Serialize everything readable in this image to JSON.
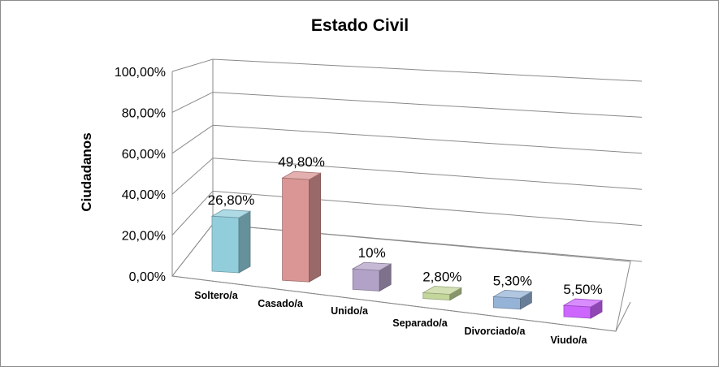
{
  "chart_data": {
    "type": "bar",
    "title": "Estado Civil",
    "ylabel": "Ciudadanos",
    "xlabel": "",
    "ylim": [
      0,
      100
    ],
    "yticks": [
      "0,00%",
      "20,00%",
      "40,00%",
      "60,00%",
      "80,00%",
      "100,00%"
    ],
    "categories": [
      "Soltero/a",
      "Casado/a",
      "Unido/a",
      "Separado/a",
      "Divorciado/a",
      "Viudo/a"
    ],
    "values": [
      26.8,
      49.8,
      10,
      2.8,
      5.3,
      5.5
    ],
    "data_labels": [
      "26,80%",
      "49,80%",
      "10%",
      "2,80%",
      "5,30%",
      "5,50%"
    ],
    "colors": [
      "#92CDDC",
      "#D99694",
      "#B3A2C7",
      "#C3D69B",
      "#95B3D7",
      "#CC66FF"
    ],
    "grid": true,
    "legend": "none",
    "style": "3d-perspective"
  }
}
